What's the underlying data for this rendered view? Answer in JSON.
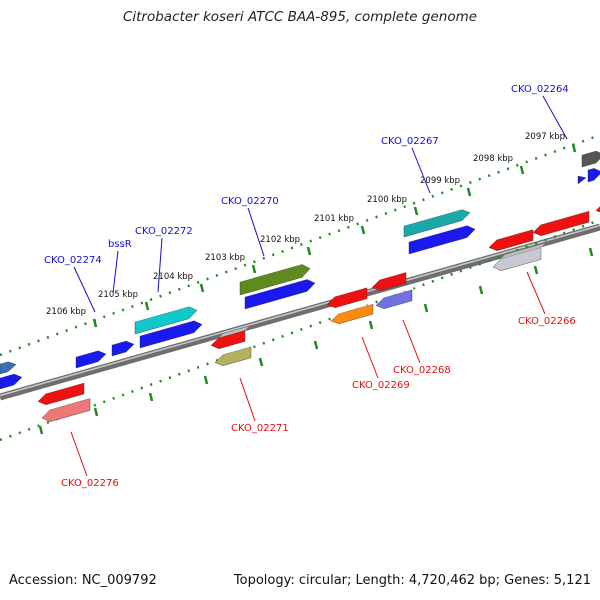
{
  "title": "Citrobacter koseri ATCC BAA-895, complete genome",
  "footer": {
    "accession": "Accession: NC_009792",
    "summary": "Topology: circular; Length: 4,720,462 bp; Genes: 5,121"
  },
  "ticks": [
    "2106 kbp",
    "2105 kbp",
    "2104 kbp",
    "2103 kbp",
    "2102 kbp",
    "2101 kbp",
    "2100 kbp",
    "2099 kbp",
    "2098 kbp",
    "2097 kbp"
  ],
  "genes_forward": [
    "CKO_02274",
    "bssR",
    "CKO_02272",
    "CKO_02270",
    "CKO_02267",
    "CKO_02264"
  ],
  "genes_reverse": [
    "CKO_02276",
    "CKO_02271",
    "CKO_02269",
    "CKO_02268",
    "CKO_02266"
  ],
  "colors": {
    "forward_label": "#1010d0",
    "reverse_label": "#e01010",
    "backbone": "#7a7a7a",
    "tick_track": "#228822",
    "gene_blue": "#1a1aee",
    "gene_red": "#ee1111"
  }
}
